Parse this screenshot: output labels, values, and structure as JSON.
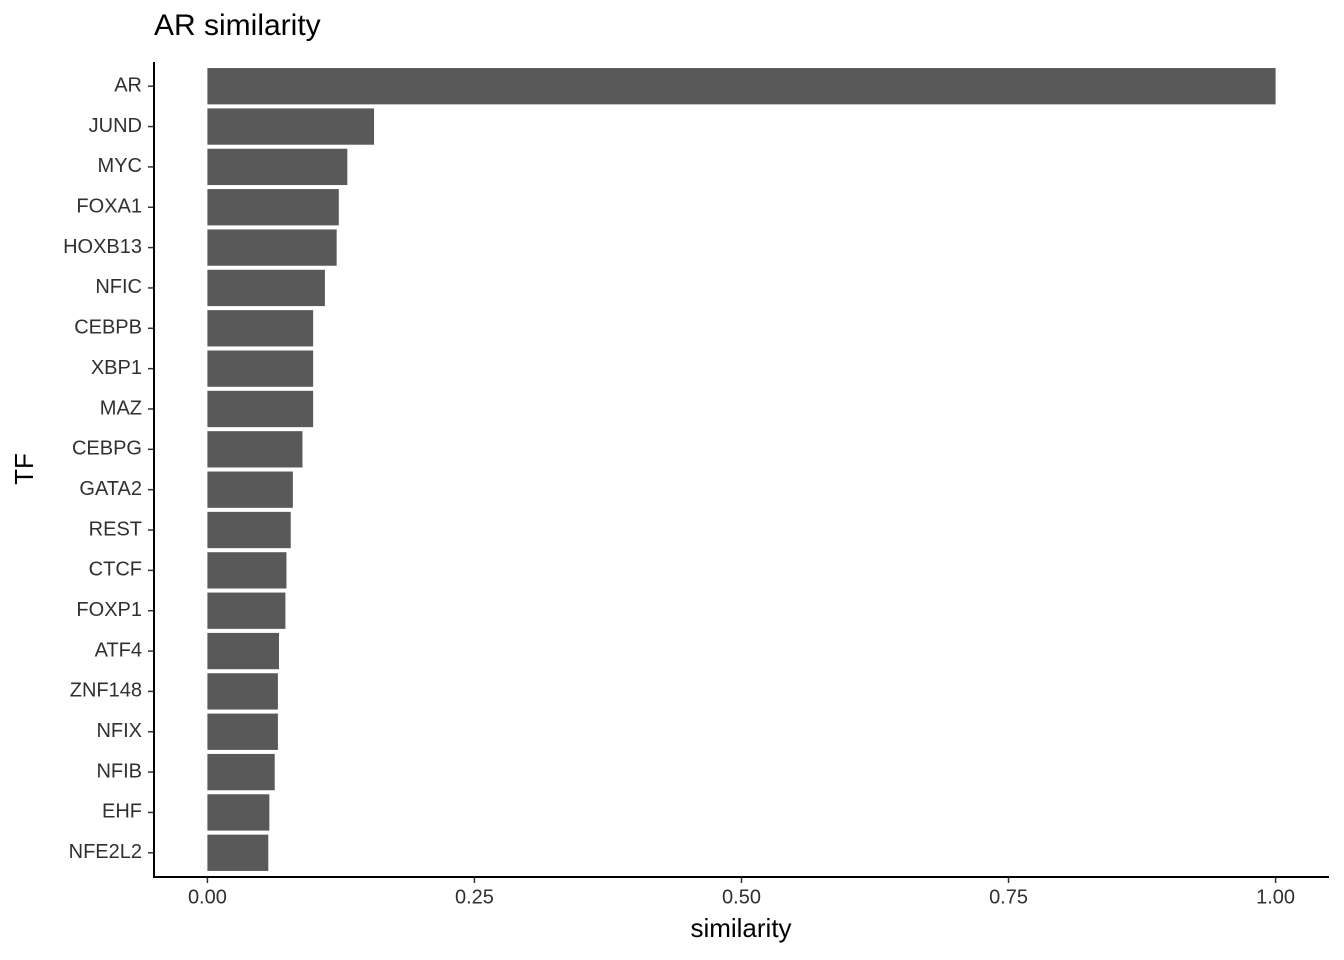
{
  "chart_data": {
    "type": "barh",
    "title": "AR similarity",
    "x_label": "similarity",
    "y_label": "TF",
    "categories": [
      "AR",
      "JUND",
      "MYC",
      "FOXA1",
      "HOXB13",
      "NFIC",
      "CEBPB",
      "XBP1",
      "MAZ",
      "CEBPG",
      "GATA2",
      "REST",
      "CTCF",
      "FOXP1",
      "ATF4",
      "ZNF148",
      "NFIX",
      "NFIB",
      "EHF",
      "NFE2L2"
    ],
    "values": [
      1.0,
      0.156,
      0.131,
      0.123,
      0.121,
      0.11,
      0.099,
      0.099,
      0.099,
      0.089,
      0.08,
      0.078,
      0.074,
      0.073,
      0.067,
      0.066,
      0.066,
      0.063,
      0.058,
      0.057
    ],
    "color": "#595959",
    "xlim": [
      -0.05,
      1.05
    ],
    "xticks": [
      {
        "value": 0,
        "label": "0.00"
      },
      {
        "value": 0.25,
        "label": "0.25"
      },
      {
        "value": 0.5,
        "label": "0.50"
      },
      {
        "value": 0.75,
        "label": "0.75"
      },
      {
        "value": 1,
        "label": "1.00"
      }
    ],
    "grid": false
  }
}
